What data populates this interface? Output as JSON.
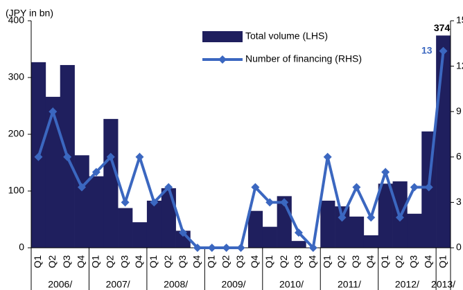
{
  "chart_data": {
    "type": "bar_line",
    "y_label": "(JPY in bn)",
    "category_groups": [
      {
        "label": "2006/",
        "categories": [
          "Q1",
          "Q2",
          "Q3",
          "Q4"
        ]
      },
      {
        "label": "2007/",
        "categories": [
          "Q1",
          "Q2",
          "Q3",
          "Q4"
        ]
      },
      {
        "label": "2008/",
        "categories": [
          "Q1",
          "Q2",
          "Q3",
          "Q4"
        ]
      },
      {
        "label": "2009/",
        "categories": [
          "Q1",
          "Q2",
          "Q3",
          "Q4"
        ]
      },
      {
        "label": "2010/",
        "categories": [
          "Q1",
          "Q2",
          "Q3",
          "Q4"
        ]
      },
      {
        "label": "2011/",
        "categories": [
          "Q1",
          "Q2",
          "Q3",
          "Q4"
        ]
      },
      {
        "label": "2012/",
        "categories": [
          "Q1",
          "Q2",
          "Q3",
          "Q4"
        ]
      },
      {
        "label": "2013/",
        "categories": [
          "Q1"
        ]
      }
    ],
    "series": [
      {
        "name": "Total volume (LHS)",
        "type": "bar",
        "color": "#1f1f5e",
        "values": [
          327,
          266,
          322,
          163,
          126,
          227,
          70,
          45,
          83,
          105,
          30,
          0,
          0,
          0,
          0,
          65,
          37,
          91,
          12,
          0,
          83,
          73,
          55,
          22,
          113,
          117,
          60,
          205,
          374
        ]
      },
      {
        "name": "Number of financing (RHS)",
        "type": "line",
        "axis": "y2",
        "color": "#3b67c0",
        "values": [
          6,
          9,
          6,
          4,
          5,
          6,
          3,
          6,
          3,
          4,
          1,
          0,
          0,
          0,
          0,
          4,
          3,
          3,
          1,
          0,
          6,
          2,
          4,
          2,
          5,
          2,
          4,
          4,
          13
        ]
      }
    ],
    "ylim": [
      0,
      400
    ],
    "yticks": [
      0,
      100,
      200,
      300,
      400
    ],
    "y2lim": [
      0,
      15
    ],
    "y2ticks": [
      0,
      3,
      6,
      9,
      12,
      15
    ]
  }
}
